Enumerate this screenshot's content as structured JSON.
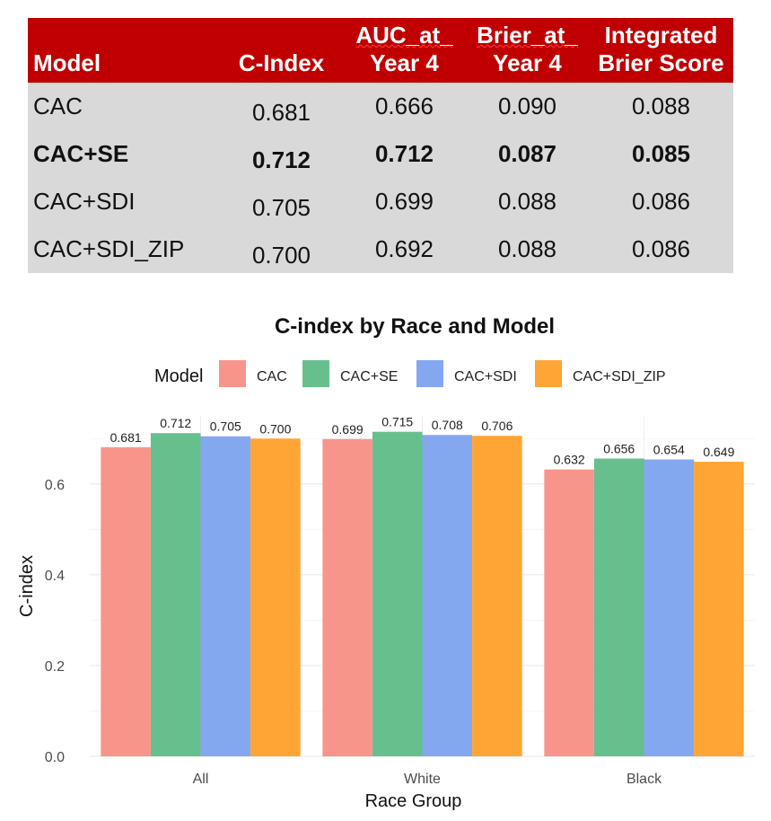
{
  "table": {
    "headers": [
      {
        "line1": "",
        "line2": "Model"
      },
      {
        "line1": "",
        "line2": "C-Index"
      },
      {
        "line1": "AUC_at_",
        "line2": "Year 4"
      },
      {
        "line1": "Brier_at_",
        "line2": "Year 4"
      },
      {
        "line1": "Integrated",
        "line2": "Brier Score"
      }
    ],
    "rows": [
      {
        "model": "CAC",
        "c_index": "0.681",
        "auc_year4": "0.666",
        "brier_year4": "0.090",
        "integrated_brier": "0.088",
        "bold": false
      },
      {
        "model": "CAC+SE",
        "c_index": "0.712",
        "auc_year4": "0.712",
        "brier_year4": "0.087",
        "integrated_brier": "0.085",
        "bold": true
      },
      {
        "model": "CAC+SDI",
        "c_index": "0.705",
        "auc_year4": "0.699",
        "brier_year4": "0.088",
        "integrated_brier": "0.086",
        "bold": false
      },
      {
        "model": "CAC+SDI_ZIP",
        "c_index": "0.700",
        "auc_year4": "0.692",
        "brier_year4": "0.088",
        "integrated_brier": "0.086",
        "bold": false
      }
    ],
    "header_color": "#c00000",
    "row_color": "#d9d9d9"
  },
  "chart_data": {
    "type": "bar",
    "title": "C-index by Race and Model",
    "xlabel": "Race Group",
    "ylabel": "C-index",
    "legend_title": "Model",
    "legend_position": "top",
    "categories": [
      "All",
      "White",
      "Black"
    ],
    "series": [
      {
        "name": "CAC",
        "values": [
          0.681,
          0.699,
          0.632
        ],
        "color": "#f8958a"
      },
      {
        "name": "CAC+SE",
        "values": [
          0.712,
          0.715,
          0.656
        ],
        "color": "#66c08e"
      },
      {
        "name": "CAC+SDI",
        "values": [
          0.705,
          0.708,
          0.654
        ],
        "color": "#84a8ef"
      },
      {
        "name": "CAC+SDI_ZIP",
        "values": [
          0.7,
          0.706,
          0.649
        ],
        "color": "#ffa535"
      }
    ],
    "yticks": [
      "0.0",
      "0.2",
      "0.4",
      "0.6"
    ],
    "ytick_values": [
      0,
      0.2,
      0.4,
      0.6
    ],
    "ylim": [
      0,
      0.75
    ],
    "grid": true
  }
}
